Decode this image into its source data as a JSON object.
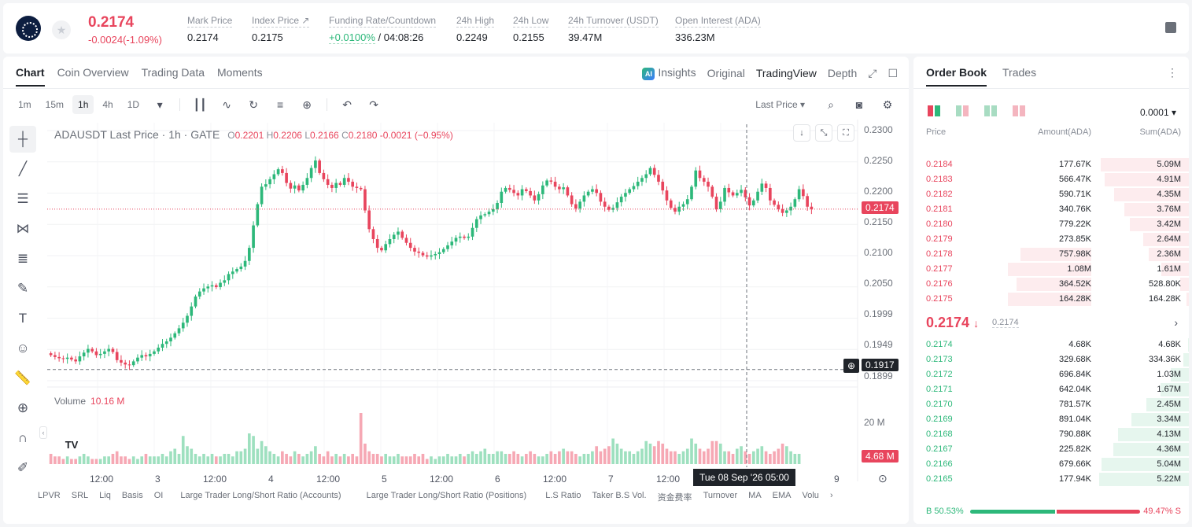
{
  "header": {
    "price": "0.2174",
    "change": "-0.0024(-1.09%)",
    "stats": [
      {
        "label": "Mark Price",
        "value": "0.2174"
      },
      {
        "label": "Index Price ↗",
        "value": "0.2175"
      },
      {
        "label": "Funding Rate/Countdown",
        "value_green": "+0.0100%",
        "value": " / 04:08:26"
      },
      {
        "label": "24h High",
        "value": "0.2249"
      },
      {
        "label": "24h Low",
        "value": "0.2155"
      },
      {
        "label": "24h Turnover (USDT)",
        "value": "39.47M"
      },
      {
        "label": "Open Interest (ADA)",
        "value": "336.23M"
      }
    ]
  },
  "chart_tabs": [
    "Chart",
    "Coin Overview",
    "Trading Data",
    "Moments"
  ],
  "view_tabs": {
    "insights": "Insights",
    "original": "Original",
    "tradingview": "TradingView",
    "depth": "Depth",
    "ai": "AI"
  },
  "timeframes": [
    "1m",
    "15m",
    "1h",
    "4h",
    "1D"
  ],
  "toolbar": {
    "last_price": "Last Price"
  },
  "legend": {
    "symbol": "ADAUSDT Last Price · 1h · GATE",
    "o_lbl": "O",
    "o": "0.2201",
    "h_lbl": "H",
    "h": "0.2206",
    "l_lbl": "L",
    "l": "0.2166",
    "c_lbl": "C",
    "c": "0.2180",
    "chg": "-0.0021 (−0.95%)"
  },
  "volume_legend": {
    "label": "Volume",
    "value": "10.16 M"
  },
  "chart_data": {
    "type": "candlestick",
    "y_ticks": [
      "0.2300",
      "0.2250",
      "0.2200",
      "0.2150",
      "0.2100",
      "0.2050",
      "0.1999",
      "0.1949",
      "0.1899"
    ],
    "ylim": [
      0.1899,
      0.23
    ],
    "x_ticks": [
      "12:00",
      "3",
      "12:00",
      "4",
      "12:00",
      "5",
      "12:00",
      "6",
      "12:00",
      "7",
      "12:00",
      "9"
    ],
    "last_price": "0.2174",
    "crosshair_price": "0.1917",
    "crosshair_time": "Tue 08 Sep '26   05:00",
    "volume_tick": "20 M",
    "volume_last": "4.68 M",
    "close_series": [
      0.194,
      0.1937,
      0.1935,
      0.1934,
      0.1936,
      0.1933,
      0.193,
      0.1938,
      0.1944,
      0.195,
      0.1946,
      0.194,
      0.1942,
      0.1946,
      0.195,
      0.1945,
      0.1932,
      0.1928,
      0.1925,
      0.1924,
      0.193,
      0.1936,
      0.194,
      0.1938,
      0.1942,
      0.1946,
      0.1952,
      0.1958,
      0.1962,
      0.1968,
      0.1975,
      0.1983,
      0.1992,
      0.2003,
      0.2018,
      0.2034,
      0.2042,
      0.2047,
      0.205,
      0.2052,
      0.2049,
      0.2056,
      0.206,
      0.207,
      0.2074,
      0.2078,
      0.2082,
      0.2091,
      0.2112,
      0.2148,
      0.2182,
      0.221,
      0.2214,
      0.2222,
      0.223,
      0.2238,
      0.2232,
      0.2216,
      0.2207,
      0.2212,
      0.2204,
      0.2213,
      0.2224,
      0.224,
      0.2252,
      0.2232,
      0.2222,
      0.2213,
      0.2208,
      0.2216,
      0.2213,
      0.2224,
      0.2218,
      0.221,
      0.2208,
      0.2206,
      0.2172,
      0.2142,
      0.2126,
      0.2112,
      0.2108,
      0.2118,
      0.2126,
      0.2133,
      0.2138,
      0.2128,
      0.212,
      0.2112,
      0.2106,
      0.2104,
      0.21,
      0.2098,
      0.21,
      0.2102,
      0.2105,
      0.211,
      0.2116,
      0.2122,
      0.2128,
      0.213,
      0.2128,
      0.213,
      0.2144,
      0.2158,
      0.2164,
      0.2166,
      0.217,
      0.2174,
      0.2184,
      0.2202,
      0.2208,
      0.2205,
      0.22,
      0.2196,
      0.2206,
      0.2203,
      0.2196,
      0.2188,
      0.2198,
      0.2212,
      0.222,
      0.2218,
      0.221,
      0.2206,
      0.2209,
      0.2196,
      0.2182,
      0.2175,
      0.2186,
      0.2196,
      0.2202,
      0.2206,
      0.22,
      0.2186,
      0.2178,
      0.2173,
      0.2176,
      0.2185,
      0.2194,
      0.22,
      0.2206,
      0.2211,
      0.2218,
      0.2224,
      0.223,
      0.224,
      0.2229,
      0.2218,
      0.2204,
      0.2188,
      0.2176,
      0.217,
      0.2178,
      0.2182,
      0.219,
      0.221,
      0.2236,
      0.2224,
      0.2218,
      0.221,
      0.2194,
      0.2174,
      0.2186,
      0.2208,
      0.2201,
      0.2196,
      0.22,
      0.2205,
      0.2193,
      0.218,
      0.2188,
      0.2202,
      0.2215,
      0.2208,
      0.2188,
      0.2181,
      0.2174,
      0.2168,
      0.2172,
      0.2178,
      0.219,
      0.2206,
      0.2195,
      0.2178,
      0.2174
    ],
    "volume_series": [
      4,
      3,
      3,
      2,
      3,
      2,
      2,
      3,
      4,
      3,
      2,
      2,
      2,
      3,
      3,
      4,
      5,
      3,
      3,
      2,
      3,
      2,
      3,
      4,
      3,
      3,
      3,
      4,
      3,
      5,
      6,
      4,
      11,
      7,
      6,
      4,
      3,
      4,
      3,
      4,
      3,
      3,
      4,
      4,
      3,
      5,
      5,
      6,
      12,
      11,
      6,
      9,
      7,
      5,
      4,
      3,
      5,
      4,
      3,
      5,
      4,
      3,
      4,
      5,
      7,
      4,
      3,
      5,
      3,
      4,
      3,
      4,
      3,
      4,
      3,
      20,
      8,
      5,
      4,
      4,
      3,
      4,
      3,
      3,
      4,
      3,
      3,
      3,
      4,
      3,
      4,
      2,
      3,
      2,
      3,
      3,
      4,
      3,
      3,
      4,
      3,
      4,
      5,
      4,
      5,
      6,
      4,
      4,
      5,
      5,
      4,
      4,
      5,
      4,
      3,
      4,
      5,
      4,
      3,
      3,
      4,
      5,
      4,
      5,
      6,
      5,
      5,
      4,
      3,
      4,
      4,
      5,
      7,
      5,
      6,
      7,
      10,
      8,
      6,
      5,
      5,
      4,
      5,
      6,
      9,
      8,
      7,
      9,
      8,
      6,
      5,
      5,
      4,
      5,
      6,
      10,
      8,
      6,
      5,
      6,
      9,
      9,
      8,
      5,
      5,
      4,
      6,
      7,
      5,
      4,
      5,
      6,
      7,
      5,
      4,
      5,
      6,
      8,
      7,
      5,
      4,
      4
    ]
  },
  "indicators": [
    "LPVR",
    "SRL",
    "Liq",
    "Basis",
    "OI",
    "Large Trader Long/Short Ratio (Accounts)",
    "Large Trader Long/Short Ratio (Positions)",
    "L.S Ratio",
    "Taker B.S Vol.",
    "资金费率",
    "Turnover",
    "MA",
    "EMA",
    "Volu"
  ],
  "orderbook": {
    "tabs": [
      "Order Book",
      "Trades"
    ],
    "precision": "0.0001",
    "cols": {
      "price": "Price",
      "amount": "Amount(ADA)",
      "sum": "Sum(ADA)"
    },
    "asks": [
      {
        "price": "0.2184",
        "amount": "177.67K",
        "sum": "5.09M",
        "depth": 0.98,
        "abar": 0
      },
      {
        "price": "0.2183",
        "amount": "566.47K",
        "sum": "4.91M",
        "depth": 0.94,
        "abar": 0
      },
      {
        "price": "0.2182",
        "amount": "590.71K",
        "sum": "4.35M",
        "depth": 0.83,
        "abar": 0
      },
      {
        "price": "0.2181",
        "amount": "340.76K",
        "sum": "3.76M",
        "depth": 0.72,
        "abar": 0
      },
      {
        "price": "0.2180",
        "amount": "779.22K",
        "sum": "3.42M",
        "depth": 0.66,
        "abar": 0
      },
      {
        "price": "0.2179",
        "amount": "273.85K",
        "sum": "2.64M",
        "depth": 0.51,
        "abar": 0
      },
      {
        "price": "0.2178",
        "amount": "757.98K",
        "sum": "2.36M",
        "depth": 0.45,
        "abar": 0.85
      },
      {
        "price": "0.2177",
        "amount": "1.08M",
        "sum": "1.61M",
        "depth": 0.31,
        "abar": 1.0
      },
      {
        "price": "0.2176",
        "amount": "364.52K",
        "sum": "528.80K",
        "depth": 0.1,
        "abar": 0.9
      },
      {
        "price": "0.2175",
        "amount": "164.28K",
        "sum": "164.28K",
        "depth": 0.03,
        "abar": 1.0
      }
    ],
    "mid": {
      "price": "0.2174",
      "arrow": "↓",
      "mark": "0.2174"
    },
    "bids": [
      {
        "price": "0.2174",
        "amount": "4.68K",
        "sum": "4.68K",
        "depth": 0.01
      },
      {
        "price": "0.2173",
        "amount": "329.68K",
        "sum": "334.36K",
        "depth": 0.06
      },
      {
        "price": "0.2172",
        "amount": "696.84K",
        "sum": "1.03M",
        "depth": 0.2
      },
      {
        "price": "0.2171",
        "amount": "642.04K",
        "sum": "1.67M",
        "depth": 0.32
      },
      {
        "price": "0.2170",
        "amount": "781.57K",
        "sum": "2.45M",
        "depth": 0.47
      },
      {
        "price": "0.2169",
        "amount": "891.04K",
        "sum": "3.34M",
        "depth": 0.64
      },
      {
        "price": "0.2168",
        "amount": "790.88K",
        "sum": "4.13M",
        "depth": 0.79
      },
      {
        "price": "0.2167",
        "amount": "225.82K",
        "sum": "4.36M",
        "depth": 0.84
      },
      {
        "price": "0.2166",
        "amount": "679.66K",
        "sum": "5.04M",
        "depth": 0.97
      },
      {
        "price": "0.2165",
        "amount": "177.94K",
        "sum": "5.22M",
        "depth": 1.0
      }
    ],
    "ratio": {
      "buy": "B 50.53%",
      "sell": "49.47% S",
      "buy_frac": 0.5053
    }
  },
  "colors": {
    "up": "#2db87a",
    "down": "#e8455d",
    "up_soft": "#e6f6ee",
    "down_soft": "#fdecee"
  }
}
